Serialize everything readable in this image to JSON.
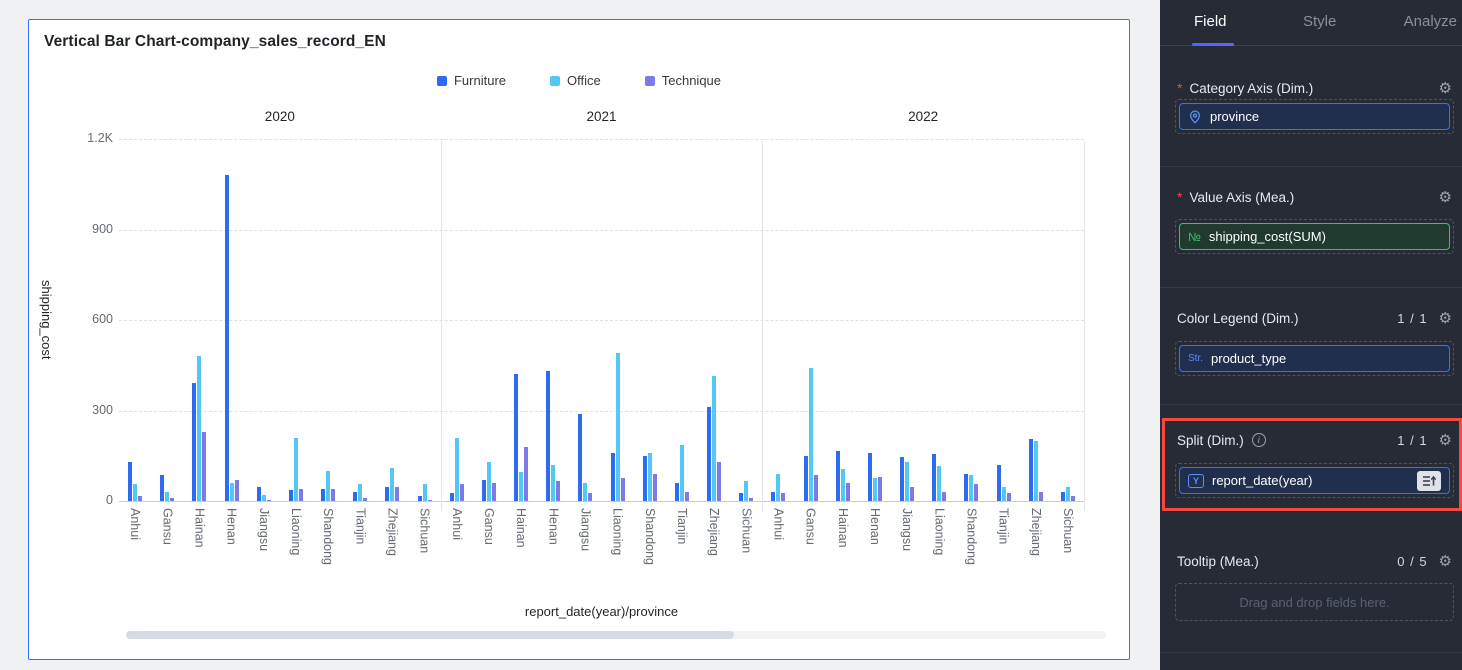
{
  "card": {
    "title": "Vertical Bar Chart-company_sales_record_EN",
    "scrollbar_thumb_percent": 62
  },
  "chart_data": {
    "type": "bar",
    "title": "Vertical Bar Chart-company_sales_record_EN",
    "legend": [
      "Furniture",
      "Office",
      "Technique"
    ],
    "legend_position": "top",
    "series_colors": [
      "#2D6BF2",
      "#54C8F5",
      "#7D7AE8"
    ],
    "ylabel": "shipping_cost",
    "xlabel": "report_date(year)/province",
    "ylim": [
      0,
      1200
    ],
    "yticks": [
      {
        "value": 0,
        "label": "0"
      },
      {
        "value": 300,
        "label": "300"
      },
      {
        "value": 600,
        "label": "600"
      },
      {
        "value": 900,
        "label": "900"
      },
      {
        "value": 1200,
        "label": "1.2K"
      }
    ],
    "grid": true,
    "categories": [
      "Anhui",
      "Gansu",
      "Hainan",
      "Henan",
      "Jiangsu",
      "Liaoning",
      "Shandong",
      "Tianjin",
      "Zhejiang",
      "Sichuan"
    ],
    "facets": [
      {
        "label": "2020",
        "series": [
          {
            "name": "Furniture",
            "values": [
              130,
              85,
              390,
              1080,
              45,
              35,
              40,
              30,
              45,
              15
            ]
          },
          {
            "name": "Office",
            "values": [
              55,
              30,
              480,
              60,
              20,
              210,
              100,
              55,
              110,
              55
            ]
          },
          {
            "name": "Technique",
            "values": [
              15,
              10,
              230,
              70,
              5,
              40,
              40,
              10,
              45,
              5
            ]
          }
        ]
      },
      {
        "label": "2021",
        "series": [
          {
            "name": "Furniture",
            "values": [
              25,
              70,
              420,
              430,
              290,
              160,
              150,
              60,
              310,
              25
            ]
          },
          {
            "name": "Office",
            "values": [
              210,
              130,
              95,
              120,
              60,
              490,
              160,
              185,
              415,
              65
            ]
          },
          {
            "name": "Technique",
            "values": [
              55,
              60,
              180,
              65,
              25,
              75,
              90,
              30,
              130,
              10
            ]
          }
        ]
      },
      {
        "label": "2022",
        "series": [
          {
            "name": "Furniture",
            "values": [
              30,
              150,
              165,
              160,
              145,
              155,
              90,
              120,
              205,
              30
            ]
          },
          {
            "name": "Office",
            "values": [
              90,
              440,
              105,
              75,
              130,
              115,
              85,
              45,
              200,
              45
            ]
          },
          {
            "name": "Technique",
            "values": [
              25,
              85,
              60,
              80,
              45,
              30,
              55,
              25,
              30,
              15
            ]
          }
        ]
      }
    ]
  },
  "panel": {
    "tabs": [
      {
        "label": "Field",
        "active": true
      },
      {
        "label": "Style",
        "active": false
      },
      {
        "label": "Analyze",
        "active": false
      }
    ],
    "sections": {
      "category": {
        "label": "Category Axis (Dim.)",
        "required": "*",
        "field": {
          "name": "province",
          "icon": "location-pin"
        }
      },
      "value": {
        "label": "Value Axis (Mea.)",
        "required": "*",
        "field": {
          "name": "shipping_cost(SUM)",
          "icon_text": "№"
        }
      },
      "color": {
        "label": "Color Legend (Dim.)",
        "count": "1 / 1",
        "field": {
          "name": "product_type",
          "icon_text": "Str."
        }
      },
      "split": {
        "label": "Split (Dim.)",
        "count": "1 / 1",
        "field": {
          "name": "report_date(year)",
          "icon_text": "Y"
        },
        "highlighted": true
      },
      "tooltip": {
        "label": "Tooltip (Mea.)",
        "count": "0 / 5",
        "placeholder": "Drag and drop fields here."
      }
    }
  },
  "colors": {
    "card_border": "#3370FF",
    "highlight_box": "#F5483F",
    "panel_background": "#262B35",
    "chip_blue_border": "#3370FF",
    "chip_green_border": "#3EBF6E"
  }
}
